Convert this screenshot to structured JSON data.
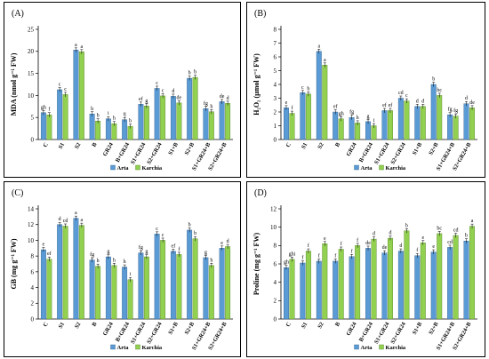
{
  "colors": {
    "arta": "#5b9bd5",
    "karchia": "#92d050",
    "arta_edge": "#2e5f8a",
    "karchia_edge": "#4f7f24"
  },
  "categories": [
    "C",
    "S1",
    "S2",
    "B",
    "GR24",
    "B+GR24",
    "S1+GR24",
    "S2+GR24",
    "S1+B",
    "S2+B",
    "S1+GR24+B",
    "S2+GR24+B"
  ],
  "legend": [
    "Arta",
    "Karchia"
  ],
  "chart_data": [
    {
      "type": "bar",
      "tag": "(A)",
      "ylabel": "MDA (nmol g⁻¹ FW)",
      "ylim": [
        0,
        25
      ],
      "yticks": [
        0,
        5,
        10,
        15,
        20,
        25
      ],
      "categories": [
        "C",
        "S1",
        "S2",
        "B",
        "GR24",
        "B+GR24",
        "S1+GR24",
        "S2+GR24",
        "S1+B",
        "S2+B",
        "S1+GR24+B",
        "S2+GR24+B"
      ],
      "series": [
        {
          "name": "Arta",
          "values": [
            6.1,
            11.3,
            20.3,
            5.8,
            4.7,
            4.5,
            8.0,
            11.6,
            9.8,
            13.9,
            7.0,
            8.6
          ],
          "letters": [
            "gh",
            "c",
            "a",
            "h",
            "i",
            "ij",
            "ef",
            "c",
            "d",
            "b",
            "fg",
            "de"
          ]
        },
        {
          "name": "Karchia",
          "values": [
            5.6,
            10.2,
            19.9,
            4.2,
            3.6,
            3.0,
            7.6,
            9.9,
            8.3,
            14.1,
            6.3,
            8.2
          ],
          "letters": [
            "f",
            "c",
            "a",
            "b",
            "h",
            "b",
            "g",
            "c",
            "de",
            "b",
            "h",
            "d"
          ]
        }
      ]
    },
    {
      "type": "bar",
      "tag": "(B)",
      "ylabel": "H₂O₂ (µmol g⁻¹ FW)",
      "ylim": [
        0,
        8
      ],
      "yticks": [
        0,
        1,
        2,
        3,
        4,
        5,
        6,
        7,
        8
      ],
      "categories": [
        "C",
        "S1",
        "S2",
        "B",
        "GR24",
        "B+GR24",
        "S1+GR24",
        "S2+GR24",
        "S1+B",
        "S2+B",
        "S1+GR24+B",
        "S2+GR24+B"
      ],
      "series": [
        {
          "name": "Arta",
          "values": [
            2.3,
            3.4,
            6.4,
            2.0,
            1.6,
            1.3,
            2.1,
            3.0,
            2.4,
            4.0,
            1.8,
            2.6
          ],
          "letters": [
            "e",
            "c",
            "a",
            "ef",
            "fg",
            "g",
            "ef",
            "cd",
            "d",
            "b",
            "fg",
            "d"
          ]
        },
        {
          "name": "Karchia",
          "values": [
            1.9,
            3.3,
            5.4,
            1.5,
            1.2,
            1.0,
            2.1,
            2.8,
            2.4,
            3.2,
            1.7,
            2.3
          ],
          "letters": [
            "f",
            "b",
            "a",
            "gh",
            "h",
            "i",
            "ef",
            "c",
            "d",
            "bc",
            "fg",
            "de"
          ]
        }
      ]
    },
    {
      "type": "bar",
      "tag": "(C)",
      "ylabel": "GB (mg g⁻¹ FW)",
      "ylim": [
        0,
        14
      ],
      "yticks": [
        0,
        2,
        4,
        6,
        8,
        10,
        12,
        14
      ],
      "categories": [
        "C",
        "S1",
        "S2",
        "B",
        "GR24",
        "B+GR24",
        "S1+GR24",
        "S2+GR24",
        "S1+B",
        "S2+B",
        "S1+GR24+B",
        "S2+GR24+B"
      ],
      "series": [
        {
          "name": "Arta",
          "values": [
            8.8,
            12.0,
            12.8,
            7.5,
            7.9,
            6.6,
            8.4,
            10.8,
            8.6,
            11.3,
            7.8,
            9.0
          ],
          "letters": [
            "e",
            "d",
            "a",
            "fg",
            "g",
            "h",
            "fg",
            "c",
            "ef",
            "b",
            "g",
            "e"
          ]
        },
        {
          "name": "Karchia",
          "values": [
            7.6,
            11.8,
            11.9,
            6.7,
            6.8,
            5.0,
            7.9,
            10.0,
            8.2,
            10.2,
            6.8,
            9.2
          ],
          "letters": [
            "ef",
            "cd",
            "a",
            "h",
            "h",
            "i",
            "g",
            "c",
            "f",
            "b",
            "h",
            "d"
          ]
        }
      ]
    },
    {
      "type": "bar",
      "tag": "(D)",
      "ylabel": "Proline (mg g⁻¹ FW)",
      "ylim": [
        0,
        12
      ],
      "yticks": [
        0,
        2,
        4,
        6,
        8,
        10,
        12
      ],
      "categories": [
        "C",
        "S1",
        "S2",
        "B",
        "GR24",
        "B+GR24",
        "S1+GR24",
        "S2+GR24",
        "S1+B",
        "S2+B",
        "S1+GR24+B",
        "S2+GR24+B"
      ],
      "series": [
        {
          "name": "Arta",
          "values": [
            5.6,
            6.1,
            6.3,
            6.3,
            6.8,
            7.7,
            7.2,
            7.4,
            6.9,
            7.3,
            7.8,
            8.5
          ],
          "letters": [
            "gh",
            "f",
            "f",
            "f",
            "f",
            "de",
            "de",
            "d",
            "f",
            "e",
            "cd",
            "b"
          ]
        },
        {
          "name": "Karchia",
          "values": [
            6.5,
            7.4,
            8.2,
            7.6,
            8.0,
            8.7,
            8.8,
            9.6,
            8.3,
            9.3,
            9.1,
            10.1
          ],
          "letters": [
            "ghi",
            "f",
            "e",
            "f",
            "f",
            "d",
            "d",
            "b",
            "e",
            "bc",
            "cd",
            "a"
          ]
        }
      ]
    }
  ]
}
